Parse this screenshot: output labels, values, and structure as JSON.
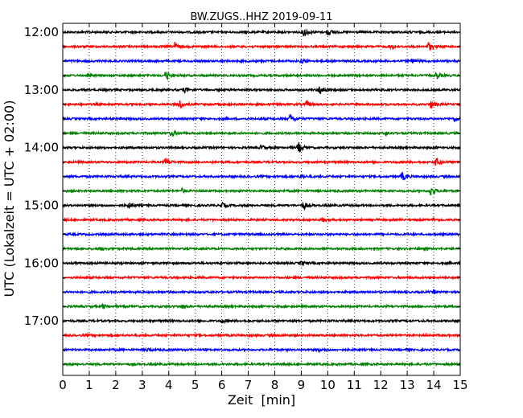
{
  "chart_data": {
    "type": "line",
    "title": "BW.ZUGS..HHZ 2019-09-11",
    "xlabel": "Zeit  [min]",
    "ylabel": "UTC (Lokalzeit = UTC + 02:00)",
    "xlim": [
      0,
      15
    ],
    "x_ticks": [
      0,
      1,
      2,
      3,
      4,
      5,
      6,
      7,
      8,
      9,
      10,
      11,
      12,
      13,
      14,
      15
    ],
    "y_tick_labels": [
      "12:00",
      "13:00",
      "14:00",
      "15:00",
      "16:00",
      "17:00"
    ],
    "grid": "vertical dotted",
    "colors": [
      "#000000",
      "#ff0000",
      "#0000ff",
      "#008000"
    ],
    "series": [
      {
        "start": "12:00",
        "color": "#000000",
        "events": [
          {
            "t": 9.1,
            "amp": 1.0
          },
          {
            "t": 10.0,
            "amp": 0.6
          }
        ]
      },
      {
        "start": "12:15",
        "color": "#ff0000",
        "events": [
          {
            "t": 4.2,
            "amp": 1.0
          },
          {
            "t": 12.4,
            "amp": 0.6
          },
          {
            "t": 13.8,
            "amp": 1.0
          }
        ]
      },
      {
        "start": "12:30",
        "color": "#0000ff",
        "events": [
          {
            "t": 9.0,
            "amp": 0.4
          },
          {
            "t": 13.2,
            "amp": 0.5
          }
        ]
      },
      {
        "start": "12:45",
        "color": "#008000",
        "events": [
          {
            "t": 3.9,
            "amp": 1.0
          },
          {
            "t": 14.1,
            "amp": 0.8
          }
        ]
      },
      {
        "start": "13:00",
        "color": "#000000",
        "events": [
          {
            "t": 9.7,
            "amp": 1.1
          },
          {
            "t": 4.6,
            "amp": 0.5
          }
        ]
      },
      {
        "start": "13:15",
        "color": "#ff0000",
        "events": [
          {
            "t": 4.4,
            "amp": 0.9
          },
          {
            "t": 9.2,
            "amp": 0.6
          },
          {
            "t": 13.9,
            "amp": 0.8
          }
        ]
      },
      {
        "start": "13:30",
        "color": "#0000ff",
        "events": [
          {
            "t": 8.6,
            "amp": 0.9
          },
          {
            "t": 14.8,
            "amp": 0.4
          }
        ]
      },
      {
        "start": "13:45",
        "color": "#008000",
        "events": [
          {
            "t": 4.1,
            "amp": 0.8
          },
          {
            "t": 12.2,
            "amp": 0.4
          }
        ]
      },
      {
        "start": "14:00",
        "color": "#000000",
        "events": [
          {
            "t": 8.9,
            "amp": 1.1
          },
          {
            "t": 7.5,
            "amp": 0.5
          }
        ]
      },
      {
        "start": "14:15",
        "color": "#ff0000",
        "events": [
          {
            "t": 3.9,
            "amp": 0.9
          },
          {
            "t": 14.1,
            "amp": 0.9
          }
        ]
      },
      {
        "start": "14:30",
        "color": "#0000ff",
        "events": [
          {
            "t": 12.8,
            "amp": 0.9
          },
          {
            "t": 9.0,
            "amp": 0.3
          }
        ]
      },
      {
        "start": "14:45",
        "color": "#008000",
        "events": [
          {
            "t": 13.9,
            "amp": 1.0
          },
          {
            "t": 4.5,
            "amp": 0.4
          }
        ]
      },
      {
        "start": "15:00",
        "color": "#000000",
        "events": [
          {
            "t": 2.5,
            "amp": 0.5
          },
          {
            "t": 6.0,
            "amp": 0.5
          },
          {
            "t": 9.1,
            "amp": 0.7
          }
        ]
      },
      {
        "start": "15:15",
        "color": "#ff0000",
        "events": [
          {
            "t": 9.8,
            "amp": 0.4
          },
          {
            "t": 14.0,
            "amp": 0.3
          }
        ]
      },
      {
        "start": "15:30",
        "color": "#0000ff",
        "events": []
      },
      {
        "start": "15:45",
        "color": "#008000",
        "events": [
          {
            "t": 1.4,
            "amp": 0.3
          }
        ]
      },
      {
        "start": "16:00",
        "color": "#000000",
        "events": [
          {
            "t": 9.0,
            "amp": 0.3
          }
        ]
      },
      {
        "start": "16:15",
        "color": "#ff0000",
        "events": []
      },
      {
        "start": "16:30",
        "color": "#0000ff",
        "events": [
          {
            "t": 14.0,
            "amp": 0.3
          }
        ]
      },
      {
        "start": "16:45",
        "color": "#008000",
        "events": [
          {
            "t": 1.5,
            "amp": 0.4
          },
          {
            "t": 4.5,
            "amp": 0.3
          }
        ]
      },
      {
        "start": "17:00",
        "color": "#000000",
        "events": [
          {
            "t": 6.0,
            "amp": 0.3
          }
        ]
      },
      {
        "start": "17:15",
        "color": "#ff0000",
        "events": []
      },
      {
        "start": "17:30",
        "color": "#0000ff",
        "events": [
          {
            "t": 9.7,
            "amp": 0.3
          },
          {
            "t": 3.2,
            "amp": 0.3
          }
        ]
      },
      {
        "start": "17:45",
        "color": "#008000",
        "events": []
      }
    ]
  }
}
